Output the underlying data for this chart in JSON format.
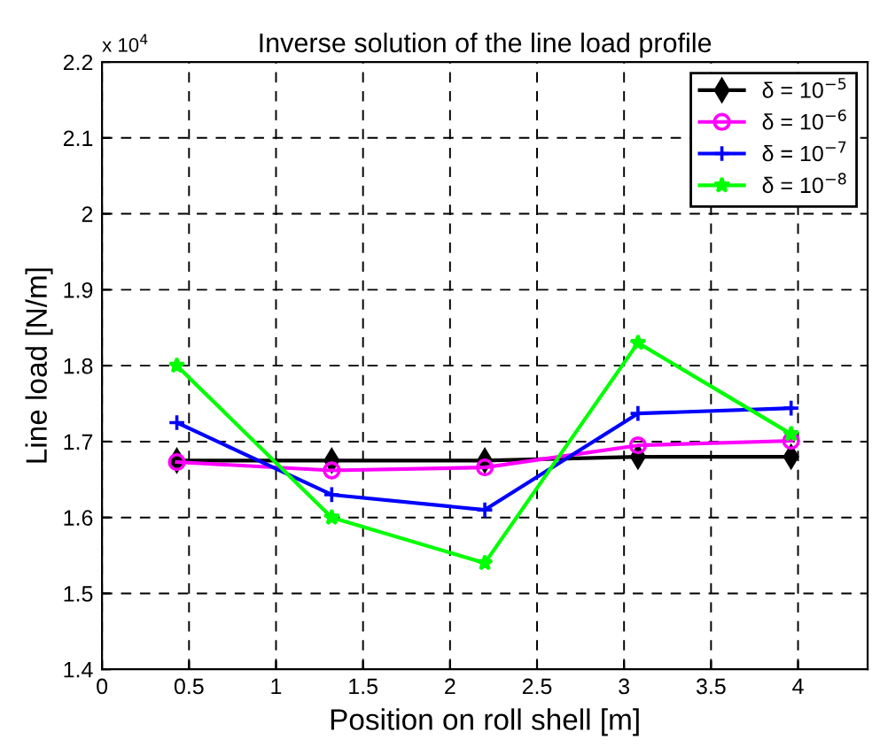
{
  "chart_data": {
    "type": "line",
    "title": "Inverse solution of the line load profile",
    "xlabel": "Position on roll shell [m]",
    "ylabel": "Line load [N/m]",
    "annotations": [
      "x 10$^{4}$"
    ],
    "x": [
      0.43,
      1.32,
      2.2,
      3.08,
      3.96
    ],
    "series": [
      {
        "name": "δ = 10$^{−5}$",
        "color": "#000000",
        "marker": "diamond",
        "values": [
          1.675,
          1.675,
          1.675,
          1.68,
          1.68
        ]
      },
      {
        "name": "δ = 10$^{−6}$",
        "color": "#ff00ff",
        "marker": "circle",
        "values": [
          1.673,
          1.662,
          1.666,
          1.695,
          1.701
        ]
      },
      {
        "name": "δ = 10$^{−7}$",
        "color": "#0000ff",
        "marker": "cross",
        "values": [
          1.725,
          1.63,
          1.61,
          1.737,
          1.744
        ]
      },
      {
        "name": "δ = 10$^{−8}$",
        "color": "#00ff00",
        "marker": "star",
        "values": [
          1.8,
          1.6,
          1.54,
          1.83,
          1.71
        ]
      }
    ],
    "xlim": [
      0,
      4.4
    ],
    "xticks": [
      0,
      0.5,
      1,
      1.5,
      2,
      2.5,
      3,
      3.5,
      4
    ],
    "ylim": [
      1.4,
      2.2
    ],
    "yticks": [
      1.4,
      1.5,
      1.6,
      1.7,
      1.8,
      1.9,
      2,
      2.1,
      2.2
    ],
    "grid": true,
    "legend": "top right",
    "line_style": "solid"
  }
}
